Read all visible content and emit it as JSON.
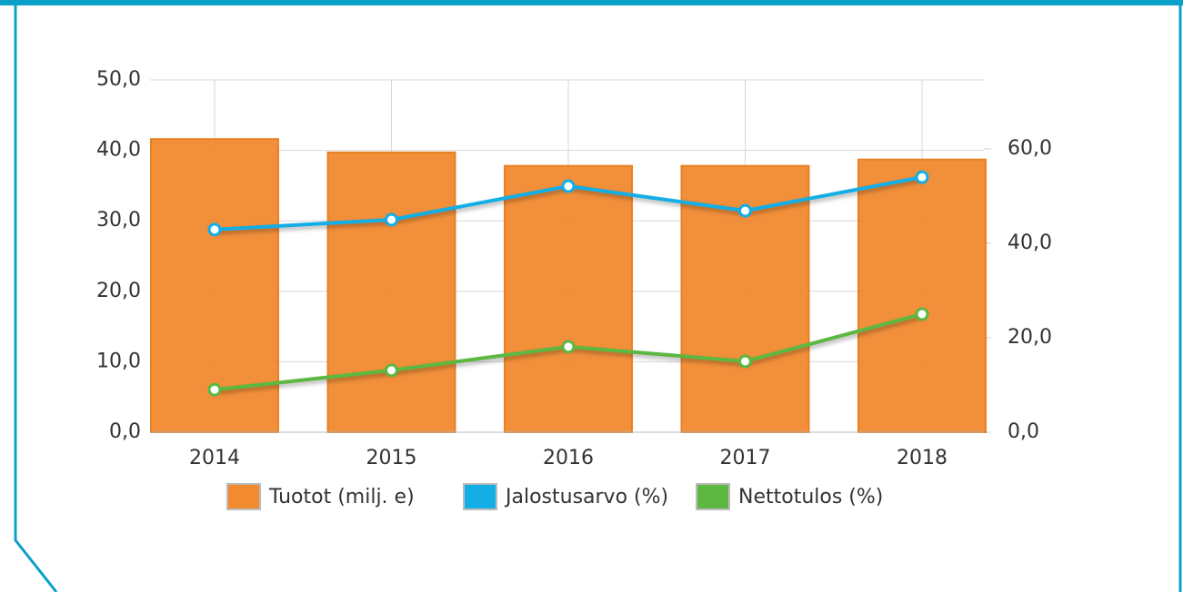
{
  "chart_data": {
    "type": "bar_line",
    "categories": [
      "2014",
      "2015",
      "2016",
      "2017",
      "2018"
    ],
    "series": [
      {
        "name": "Tuotot (milj. e)",
        "type": "bar",
        "color": "#f28a30",
        "values": [
          41.6,
          39.7,
          37.8,
          37.8,
          38.7
        ]
      },
      {
        "name": "Jalostusarvo (%)",
        "type": "line",
        "axis": "y2",
        "color": "#13aee6",
        "values": [
          42.9,
          45.0,
          52.1,
          46.9,
          54.0
        ]
      },
      {
        "name": "Nettotulos (%)",
        "type": "line",
        "axis": "y2",
        "color": "#5cb840",
        "values": [
          9.0,
          13.1,
          18.1,
          15.0,
          25.0
        ]
      }
    ],
    "ylim": [
      0,
      50
    ],
    "yticks": [
      {
        "value": 0,
        "label": "0,0"
      },
      {
        "value": 10,
        "label": "10,0"
      },
      {
        "value": 20,
        "label": "20,0"
      },
      {
        "value": 30,
        "label": "30,0"
      },
      {
        "value": 40,
        "label": "40,0"
      },
      {
        "value": 50,
        "label": "50,0"
      }
    ],
    "y2lim": [
      0,
      74.6
    ],
    "y2ticks": [
      {
        "value": 0,
        "label": "0,0"
      },
      {
        "value": 20,
        "label": "20,0"
      },
      {
        "value": 40,
        "label": "40,0"
      },
      {
        "value": 60,
        "label": "60,0"
      }
    ],
    "grid": true,
    "legend": "bottom"
  }
}
